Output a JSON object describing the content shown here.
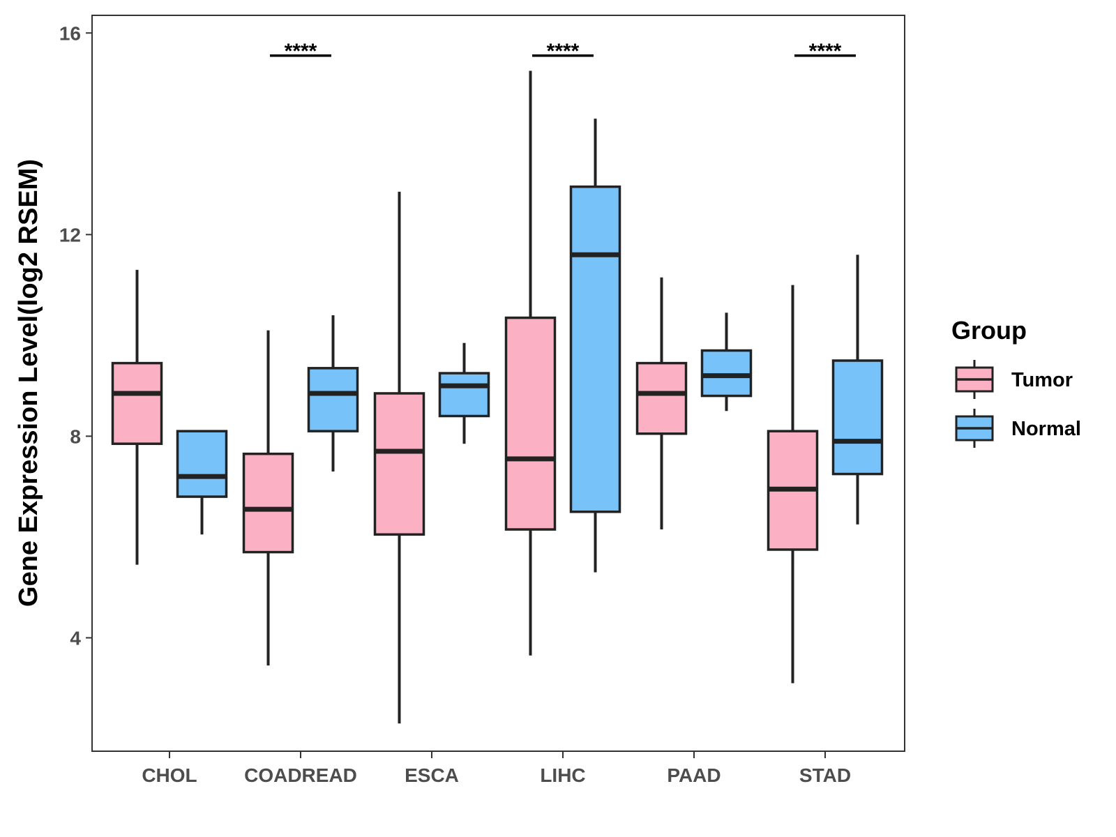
{
  "chart_data": {
    "type": "boxplot",
    "title": "",
    "xlabel": "",
    "ylabel": "Gene Expression Level(log2 RSEM)",
    "ylim": [
      1.75,
      16.35
    ],
    "yticks": [
      4,
      8,
      12,
      16
    ],
    "grid": false,
    "legend_position": "right",
    "legend": {
      "title": "Group",
      "entries": [
        {
          "name": "Tumor",
          "color": "#fbb1c3"
        },
        {
          "name": "Normal",
          "color": "#77c2f9"
        }
      ]
    },
    "categories": [
      "CHOL",
      "COADREAD",
      "ESCA",
      "LIHC",
      "PAAD",
      "STAD"
    ],
    "series": [
      {
        "name": "Tumor",
        "color": "#fbb1c3",
        "boxes": [
          {
            "whisker_low": 5.45,
            "q1": 7.85,
            "median": 8.85,
            "q3": 9.45,
            "whisker_high": 11.3
          },
          {
            "whisker_low": 3.45,
            "q1": 5.7,
            "median": 6.55,
            "q3": 7.65,
            "whisker_high": 10.1
          },
          {
            "whisker_low": 2.3,
            "q1": 6.05,
            "median": 7.7,
            "q3": 8.85,
            "whisker_high": 12.85
          },
          {
            "whisker_low": 3.65,
            "q1": 6.15,
            "median": 7.55,
            "q3": 10.35,
            "whisker_high": 15.25
          },
          {
            "whisker_low": 6.15,
            "q1": 8.05,
            "median": 8.85,
            "q3": 9.45,
            "whisker_high": 11.15
          },
          {
            "whisker_low": 3.1,
            "q1": 5.75,
            "median": 6.95,
            "q3": 8.1,
            "whisker_high": 11.0
          }
        ]
      },
      {
        "name": "Normal",
        "color": "#77c2f9",
        "boxes": [
          {
            "whisker_low": 6.05,
            "q1": 6.8,
            "median": 7.2,
            "q3": 8.1,
            "whisker_high": 8.1
          },
          {
            "whisker_low": 7.3,
            "q1": 8.1,
            "median": 8.85,
            "q3": 9.35,
            "whisker_high": 10.4
          },
          {
            "whisker_low": 7.85,
            "q1": 8.4,
            "median": 9.0,
            "q3": 9.25,
            "whisker_high": 9.85
          },
          {
            "whisker_low": 5.3,
            "q1": 6.5,
            "median": 11.6,
            "q3": 12.95,
            "whisker_high": 14.3
          },
          {
            "whisker_low": 8.5,
            "q1": 8.8,
            "median": 9.2,
            "q3": 9.7,
            "whisker_high": 10.45
          },
          {
            "whisker_low": 6.25,
            "q1": 7.25,
            "median": 7.9,
            "q3": 9.5,
            "whisker_high": 11.6
          }
        ]
      }
    ],
    "annotations": [
      {
        "category": "COADREAD",
        "text": "****",
        "y": 15.55
      },
      {
        "category": "LIHC",
        "text": "****",
        "y": 15.55
      },
      {
        "category": "STAD",
        "text": "****",
        "y": 15.55
      }
    ]
  }
}
